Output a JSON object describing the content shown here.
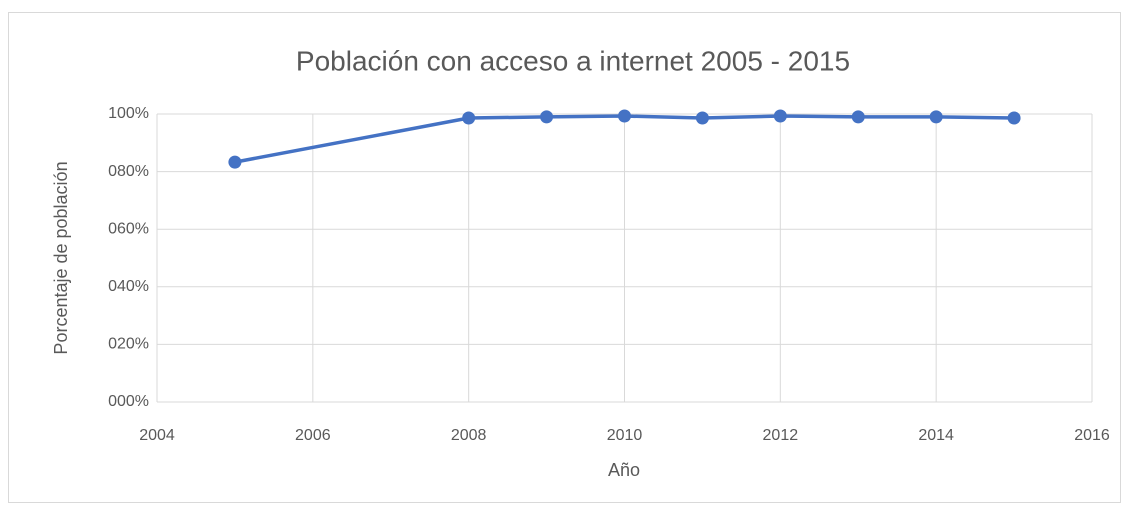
{
  "chart_data": {
    "type": "line",
    "title": "Población con acceso a internet 2005 - 2015",
    "x_label": "Año",
    "y_label": "Porcentaje de población",
    "x": [
      2005,
      2008,
      2009,
      2010,
      2011,
      2012,
      2013,
      2014,
      2015
    ],
    "series": [
      {
        "name": "Población con acceso a internet",
        "color": "#4472c4",
        "values": [
          83.3,
          98.6,
          99,
          99.3,
          98.6,
          99.3,
          99,
          99,
          98.6
        ]
      }
    ],
    "xlim": [
      2004,
      2016
    ],
    "xticks": [
      2004,
      2006,
      2008,
      2010,
      2012,
      2014,
      2016
    ],
    "ylim": [
      0,
      100
    ],
    "yticks": [
      {
        "value": 0,
        "label": "000%"
      },
      {
        "value": 20,
        "label": "020%"
      },
      {
        "value": 40,
        "label": "040%"
      },
      {
        "value": 60,
        "label": "060%"
      },
      {
        "value": 80,
        "label": "080%"
      },
      {
        "value": 100,
        "label": "100%"
      }
    ],
    "grid": true
  }
}
